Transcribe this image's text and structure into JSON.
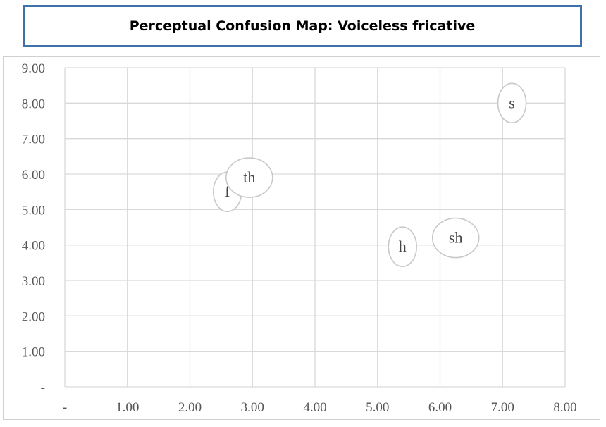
{
  "chart_data": {
    "type": "scatter",
    "title": "Perceptual Confusion Map: Voiceless fricative",
    "xlabel": "",
    "ylabel": "",
    "xlim": [
      0,
      8
    ],
    "ylim": [
      0,
      9
    ],
    "grid": true,
    "x_tick_labels": [
      "-",
      "1.00",
      "2.00",
      "3.00",
      "4.00",
      "5.00",
      "6.00",
      "7.00",
      "8.00"
    ],
    "y_tick_labels": [
      "-",
      "1.00",
      "2.00",
      "3.00",
      "4.00",
      "5.00",
      "6.00",
      "7.00",
      "8.00",
      "9.00"
    ],
    "points": [
      {
        "label": "f",
        "x": 2.6,
        "y": 5.5
      },
      {
        "label": "th",
        "x": 2.95,
        "y": 5.9
      },
      {
        "label": "h",
        "x": 5.4,
        "y": 3.95
      },
      {
        "label": "sh",
        "x": 6.25,
        "y": 4.2
      },
      {
        "label": "s",
        "x": 7.15,
        "y": 8.0
      }
    ],
    "colors": {
      "grid": "#d9d9d9",
      "marker_stroke": "#c8c8c8",
      "title_border": "#3f72a8"
    }
  }
}
